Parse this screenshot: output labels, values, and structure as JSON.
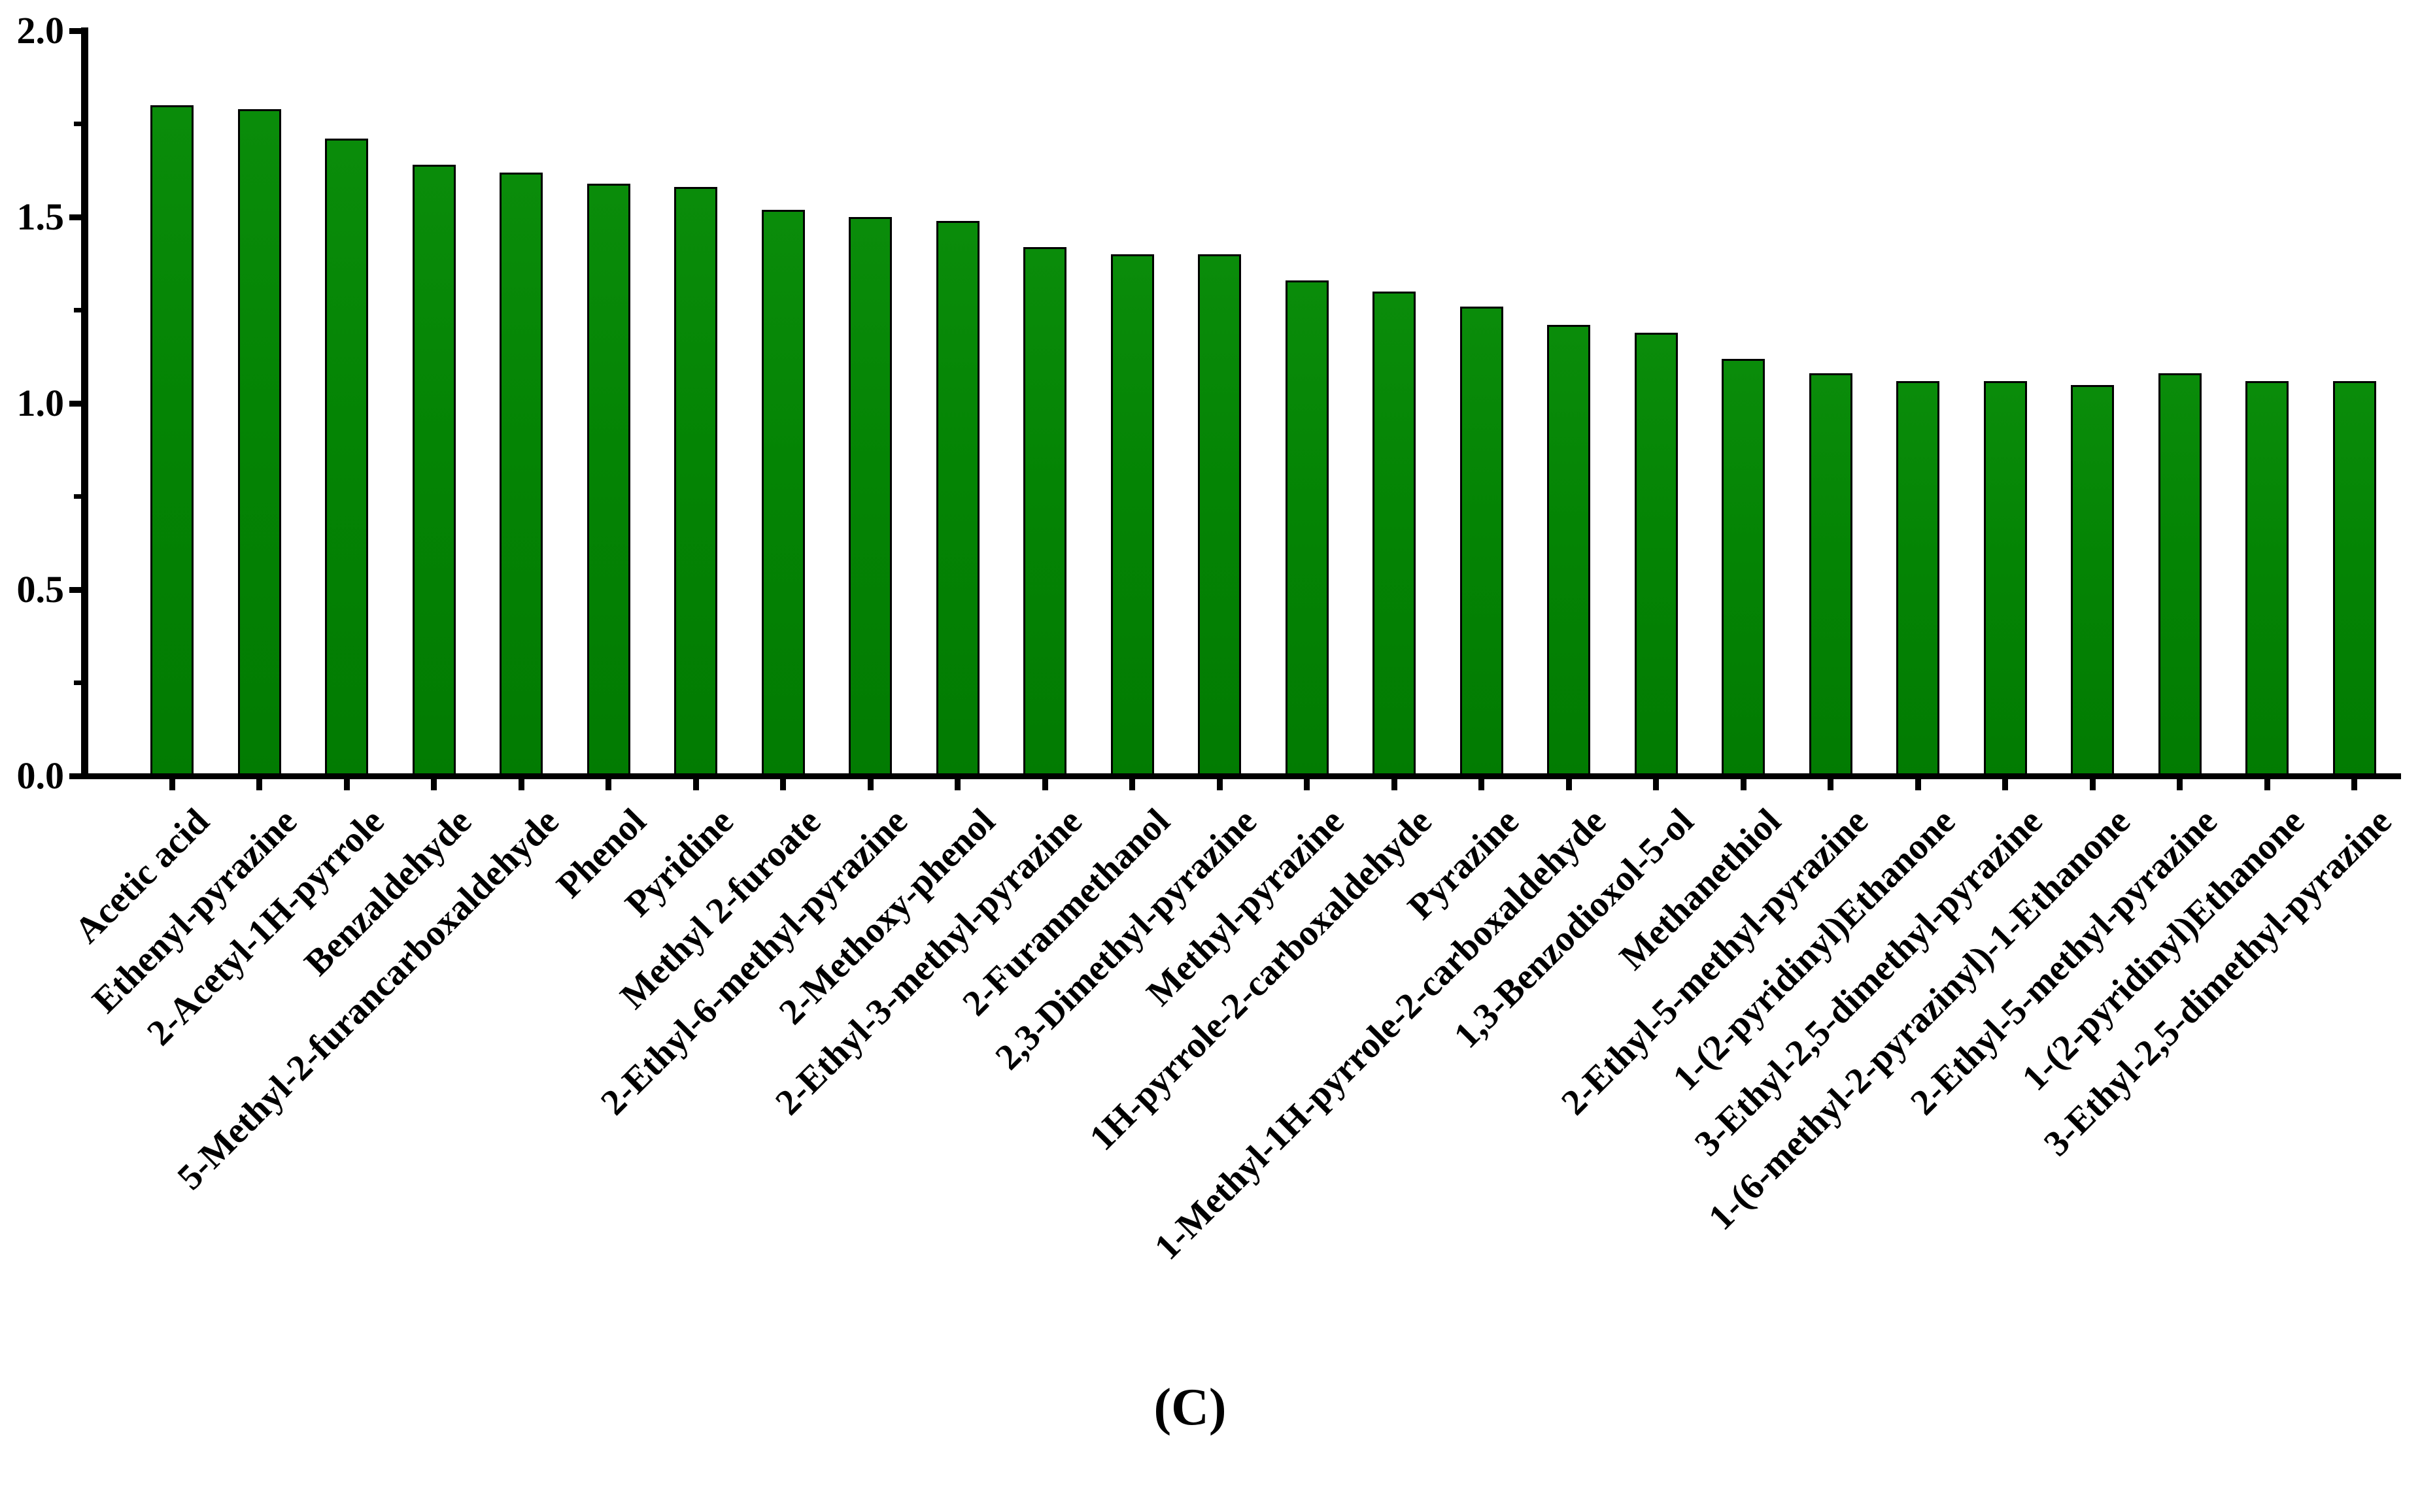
{
  "figure": {
    "caption": "(C)"
  },
  "colors": {
    "bar_fill": "#048404",
    "bar_border": "#000000",
    "axis": "#000000",
    "text": "#000000",
    "background": "#ffffff"
  },
  "chart_data": {
    "type": "bar",
    "title": "",
    "xlabel": "",
    "ylabel": "",
    "ylim": [
      0.0,
      2.0
    ],
    "grid": "off",
    "legend": "none",
    "bar_color": "#048404",
    "ytick_labels": [
      "0.0",
      "0.5",
      "1.0",
      "1.5",
      "2.0"
    ],
    "yticks_major": [
      0.0,
      0.5,
      1.0,
      1.5,
      2.0
    ],
    "yticks_minor": [
      0.25,
      0.75,
      1.25,
      1.75
    ],
    "categories": [
      "Acetic acid",
      "Ethenyl-pyrazine",
      "2-Acetyl-1H-pyrrole",
      "Benzaldehyde",
      "5-Methyl-2-furancarboxaldehyde",
      "Phenol",
      "Pyridine",
      "Methyl 2-furoate",
      "2-Ethyl-6-methyl-pyrazine",
      "2-Methoxy-phenol",
      "2-Ethyl-3-methyl-pyrazine",
      "2-Furanmethanol",
      "2,3-Dimethyl-pyrazine",
      "Methyl-pyrazine",
      "1H-pyrrole-2-carboxaldehyde",
      "Pyrazine",
      "1-Methyl-1H-pyrrole-2-carboxaldehyde",
      "1,3-Benzodioxol-5-ol",
      "Methanethiol",
      "2-Ethyl-5-methyl-pyrazine",
      "1-(2-pyridinyl)Ethanone",
      "3-Ethyl-2,5-dimethyl-pyrazine",
      "1-(6-methyl-2-pyrazinyl)-1-Ethanone",
      "2-Ethyl-5-methyl-pyrazine",
      "1-(2-pyridinyl)Ethanone",
      "3-Ethyl-2,5-dimethyl-pyrazine"
    ],
    "values": [
      1.8,
      1.79,
      1.71,
      1.64,
      1.62,
      1.59,
      1.58,
      1.52,
      1.5,
      1.49,
      1.42,
      1.4,
      1.4,
      1.33,
      1.3,
      1.26,
      1.21,
      1.19,
      1.12,
      1.08,
      1.06,
      1.06,
      1.05,
      1.08,
      1.06,
      1.06
    ]
  }
}
